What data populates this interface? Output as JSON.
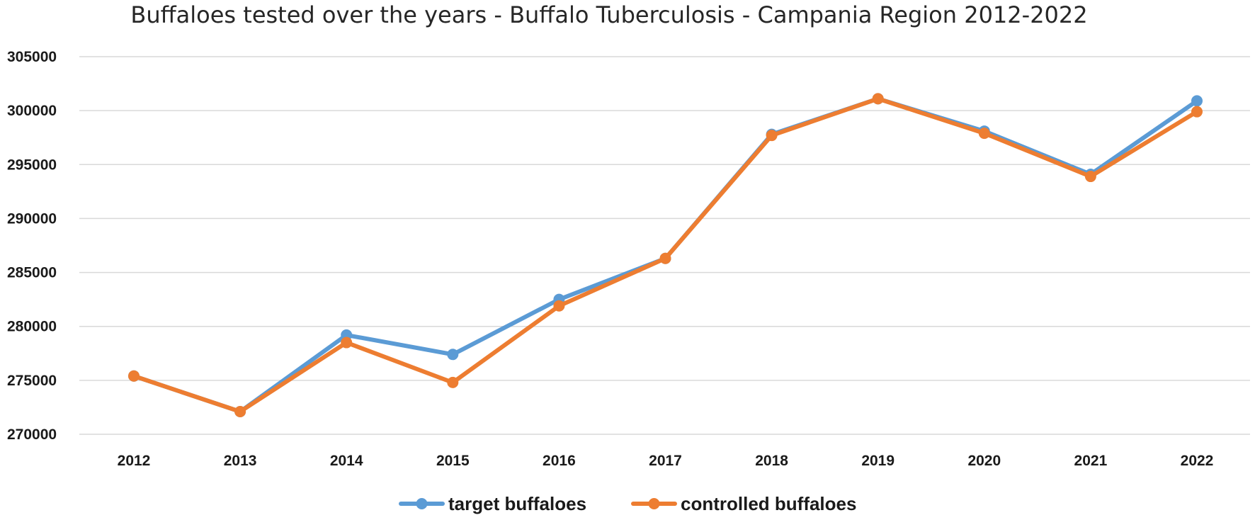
{
  "chart_data": {
    "type": "line",
    "title": "Buffaloes tested over the years - Buffalo Tuberculosis - Campania Region 2012-2022",
    "xlabel": "",
    "ylabel": "",
    "categories": [
      "2012",
      "2013",
      "2014",
      "2015",
      "2016",
      "2017",
      "2018",
      "2019",
      "2020",
      "2021",
      "2022"
    ],
    "ylim": [
      270000,
      305000
    ],
    "yticks": [
      "270000",
      "275000",
      "280000",
      "285000",
      "290000",
      "295000",
      "300000",
      "305000"
    ],
    "grid": true,
    "legend_position": "bottom",
    "series": [
      {
        "name": "target buffaloes",
        "color": "#5b9bd5",
        "values": [
          275400,
          272100,
          279200,
          277400,
          282500,
          286300,
          297800,
          301100,
          298100,
          294100,
          300900
        ]
      },
      {
        "name": "controlled buffaloes",
        "color": "#ed7d31",
        "values": [
          275400,
          272100,
          278500,
          274800,
          281900,
          286300,
          297700,
          301100,
          297900,
          293900,
          299900
        ]
      }
    ]
  }
}
